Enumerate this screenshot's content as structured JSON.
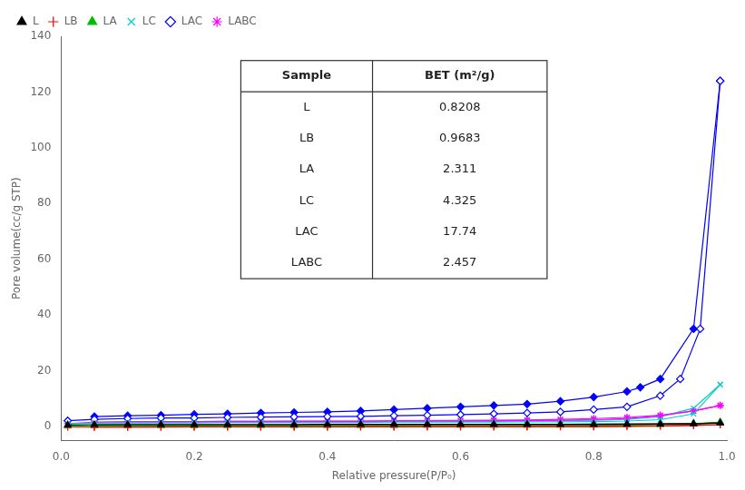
{
  "chart_data": {
    "type": "line",
    "title": "",
    "xlabel": "Relative pressure(P/P₀)",
    "ylabel": "Pore volume(cc/g STP)",
    "xlim": [
      0.0,
      1.0
    ],
    "ylim": [
      -5,
      140
    ],
    "xticks": [
      {
        "value": 0.0,
        "label": "0.0"
      },
      0.2,
      0.4,
      0.6,
      0.8,
      {
        "value": 1.0,
        "label": "1.0"
      }
    ],
    "yticks": [
      0,
      20,
      40,
      60,
      80,
      100,
      120,
      140
    ],
    "grid": false,
    "legend": "upper left",
    "series": [
      {
        "name": "L",
        "color": "#000000",
        "marker": "triangle",
        "x": [
          0.01,
          0.05,
          0.1,
          0.15,
          0.2,
          0.25,
          0.3,
          0.35,
          0.4,
          0.45,
          0.5,
          0.55,
          0.6,
          0.65,
          0.7,
          0.75,
          0.8,
          0.85,
          0.9,
          0.95,
          0.99
        ],
        "values": [
          0.5,
          0.6,
          0.6,
          0.6,
          0.6,
          0.6,
          0.6,
          0.6,
          0.7,
          0.7,
          0.7,
          0.7,
          0.7,
          0.7,
          0.7,
          0.7,
          0.7,
          0.8,
          0.8,
          0.9,
          1.2
        ],
        "desorption": {
          "marker": "triangle",
          "x": [
            0.99,
            0.95,
            0.9,
            0.85,
            0.8,
            0.75,
            0.7,
            0.65,
            0.6,
            0.55,
            0.5,
            0.45,
            0.4,
            0.35,
            0.3,
            0.25,
            0.2,
            0.15,
            0.1,
            0.05
          ],
          "values": [
            1.2,
            1.0,
            0.9,
            0.8,
            0.8,
            0.7,
            0.7,
            0.7,
            0.7,
            0.7,
            0.7,
            0.7,
            0.7,
            0.6,
            0.6,
            0.6,
            0.6,
            0.6,
            0.6,
            0.5
          ]
        }
      },
      {
        "name": "LB",
        "color": "#ff0000",
        "marker": "plus",
        "x": [
          0.01,
          0.05,
          0.1,
          0.15,
          0.2,
          0.25,
          0.3,
          0.35,
          0.4,
          0.45,
          0.5,
          0.55,
          0.6,
          0.65,
          0.7,
          0.75,
          0.8,
          0.85,
          0.9,
          0.95,
          0.99
        ],
        "values": [
          -0.3,
          -0.3,
          -0.3,
          -0.2,
          -0.2,
          -0.2,
          -0.2,
          -0.2,
          -0.2,
          -0.1,
          -0.1,
          -0.1,
          -0.1,
          -0.1,
          -0.1,
          -0.1,
          -0.1,
          0.0,
          0.1,
          0.3,
          0.6
        ],
        "desorption": {
          "marker": "plus",
          "x": [
            0.99,
            0.95,
            0.9,
            0.85,
            0.8,
            0.75,
            0.7,
            0.65,
            0.6,
            0.55,
            0.5,
            0.45,
            0.4,
            0.35,
            0.3,
            0.25,
            0.2,
            0.15,
            0.1,
            0.05
          ],
          "values": [
            0.6,
            0.4,
            0.2,
            0.1,
            0.0,
            0.0,
            -0.1,
            -0.1,
            -0.1,
            -0.1,
            -0.2,
            -0.2,
            -0.2,
            -0.2,
            -0.2,
            -0.2,
            -0.2,
            -0.3,
            -0.3,
            -0.3
          ]
        }
      },
      {
        "name": "LA",
        "color": "#00bb00",
        "marker": "triangle",
        "x": [
          0.01,
          0.05,
          0.1,
          0.15,
          0.2,
          0.25,
          0.3,
          0.35,
          0.4,
          0.45,
          0.5,
          0.55,
          0.6,
          0.65,
          0.7,
          0.75,
          0.8,
          0.85,
          0.9,
          0.95,
          0.99
        ],
        "values": [
          0.1,
          0.2,
          0.2,
          0.2,
          0.2,
          0.3,
          0.3,
          0.3,
          0.3,
          0.3,
          0.3,
          0.4,
          0.4,
          0.4,
          0.4,
          0.4,
          0.4,
          0.5,
          0.6,
          0.8,
          1.5
        ],
        "desorption": {
          "marker": "triangle",
          "x": [
            0.99,
            0.95,
            0.9,
            0.85,
            0.8,
            0.75,
            0.7,
            0.65,
            0.6,
            0.55,
            0.5,
            0.45,
            0.4,
            0.35,
            0.3,
            0.25,
            0.2,
            0.15,
            0.1,
            0.05
          ],
          "values": [
            1.5,
            1.0,
            0.8,
            0.6,
            0.5,
            0.5,
            0.4,
            0.4,
            0.4,
            0.4,
            0.3,
            0.3,
            0.3,
            0.3,
            0.3,
            0.3,
            0.2,
            0.2,
            0.2,
            0.2
          ]
        }
      },
      {
        "name": "LC",
        "color": "#00cccc",
        "marker": "x",
        "x": [
          0.01,
          0.05,
          0.1,
          0.15,
          0.2,
          0.25,
          0.3,
          0.35,
          0.4,
          0.45,
          0.5,
          0.55,
          0.6,
          0.65,
          0.7,
          0.75,
          0.8,
          0.85,
          0.9,
          0.95,
          0.99
        ],
        "values": [
          1.0,
          1.2,
          1.3,
          1.3,
          1.3,
          1.4,
          1.4,
          1.4,
          1.4,
          1.4,
          1.5,
          1.5,
          1.5,
          1.5,
          1.6,
          1.6,
          1.7,
          1.9,
          2.4,
          4.5,
          15.0
        ],
        "desorption": {
          "marker": "x",
          "x": [
            0.99,
            0.95,
            0.9,
            0.85,
            0.8,
            0.75,
            0.7,
            0.65,
            0.6,
            0.55,
            0.5,
            0.45,
            0.4,
            0.35,
            0.3,
            0.25,
            0.2,
            0.15,
            0.1,
            0.05
          ],
          "values": [
            15.0,
            6.5,
            3.5,
            2.5,
            2.2,
            2.0,
            1.9,
            1.8,
            1.8,
            1.7,
            1.7,
            1.6,
            1.6,
            1.5,
            1.5,
            1.5,
            1.4,
            1.4,
            1.3,
            1.3
          ]
        }
      },
      {
        "name": "LAC",
        "color": "#0000ff",
        "marker": "open diamond",
        "x": [
          0.01,
          0.05,
          0.1,
          0.15,
          0.2,
          0.25,
          0.3,
          0.35,
          0.4,
          0.45,
          0.5,
          0.55,
          0.6,
          0.65,
          0.7,
          0.75,
          0.8,
          0.85,
          0.9,
          0.93,
          0.96,
          0.99
        ],
        "values": [
          2.0,
          2.5,
          2.8,
          3.0,
          3.0,
          3.2,
          3.3,
          3.4,
          3.5,
          3.6,
          3.8,
          4.0,
          4.2,
          4.5,
          4.8,
          5.2,
          6.0,
          7.0,
          11.0,
          17.0,
          35.0,
          124.0
        ],
        "desorption": {
          "marker": "diamond",
          "x": [
            0.99,
            0.95,
            0.9,
            0.87,
            0.85,
            0.8,
            0.75,
            0.7,
            0.65,
            0.6,
            0.55,
            0.5,
            0.45,
            0.4,
            0.35,
            0.3,
            0.25,
            0.2,
            0.15,
            0.1,
            0.05
          ],
          "values": [
            124.0,
            35.0,
            17.0,
            14.0,
            12.5,
            10.5,
            9.0,
            8.0,
            7.5,
            7.0,
            6.5,
            6.0,
            5.5,
            5.2,
            5.0,
            4.8,
            4.5,
            4.3,
            4.0,
            3.8,
            3.5
          ]
        }
      },
      {
        "name": "LABC",
        "color": "#ff00ff",
        "marker": "star",
        "x": [
          0.01,
          0.05,
          0.1,
          0.15,
          0.2,
          0.25,
          0.3,
          0.35,
          0.4,
          0.45,
          0.5,
          0.55,
          0.6,
          0.65,
          0.7,
          0.75,
          0.8,
          0.85,
          0.9,
          0.95,
          0.99
        ],
        "values": [
          1.0,
          1.5,
          1.6,
          1.7,
          1.7,
          1.8,
          1.8,
          1.8,
          1.8,
          1.8,
          1.9,
          1.9,
          1.9,
          2.0,
          2.1,
          2.2,
          2.4,
          2.8,
          3.8,
          5.5,
          7.5
        ],
        "desorption": {
          "marker": "star",
          "x": [
            0.99,
            0.95,
            0.9,
            0.85,
            0.8,
            0.75,
            0.7,
            0.65,
            0.6,
            0.55,
            0.5,
            0.45,
            0.4,
            0.35,
            0.3,
            0.25,
            0.2,
            0.15,
            0.1,
            0.05
          ],
          "values": [
            7.5,
            5.5,
            4.0,
            3.2,
            2.8,
            2.5,
            2.3,
            2.2,
            2.1,
            2.0,
            2.0,
            1.9,
            1.9,
            1.9,
            1.8,
            1.8,
            1.7,
            1.7,
            1.6,
            1.5
          ]
        }
      }
    ],
    "table": {
      "columns": [
        "Sample",
        "BET (m²/g)"
      ],
      "rows": [
        [
          "L",
          "0.8208"
        ],
        [
          "LB",
          "0.9683"
        ],
        [
          "LA",
          "2.311"
        ],
        [
          "LC",
          "4.325"
        ],
        [
          "LAC",
          "17.74"
        ],
        [
          "LABC",
          "2.457"
        ]
      ]
    }
  }
}
